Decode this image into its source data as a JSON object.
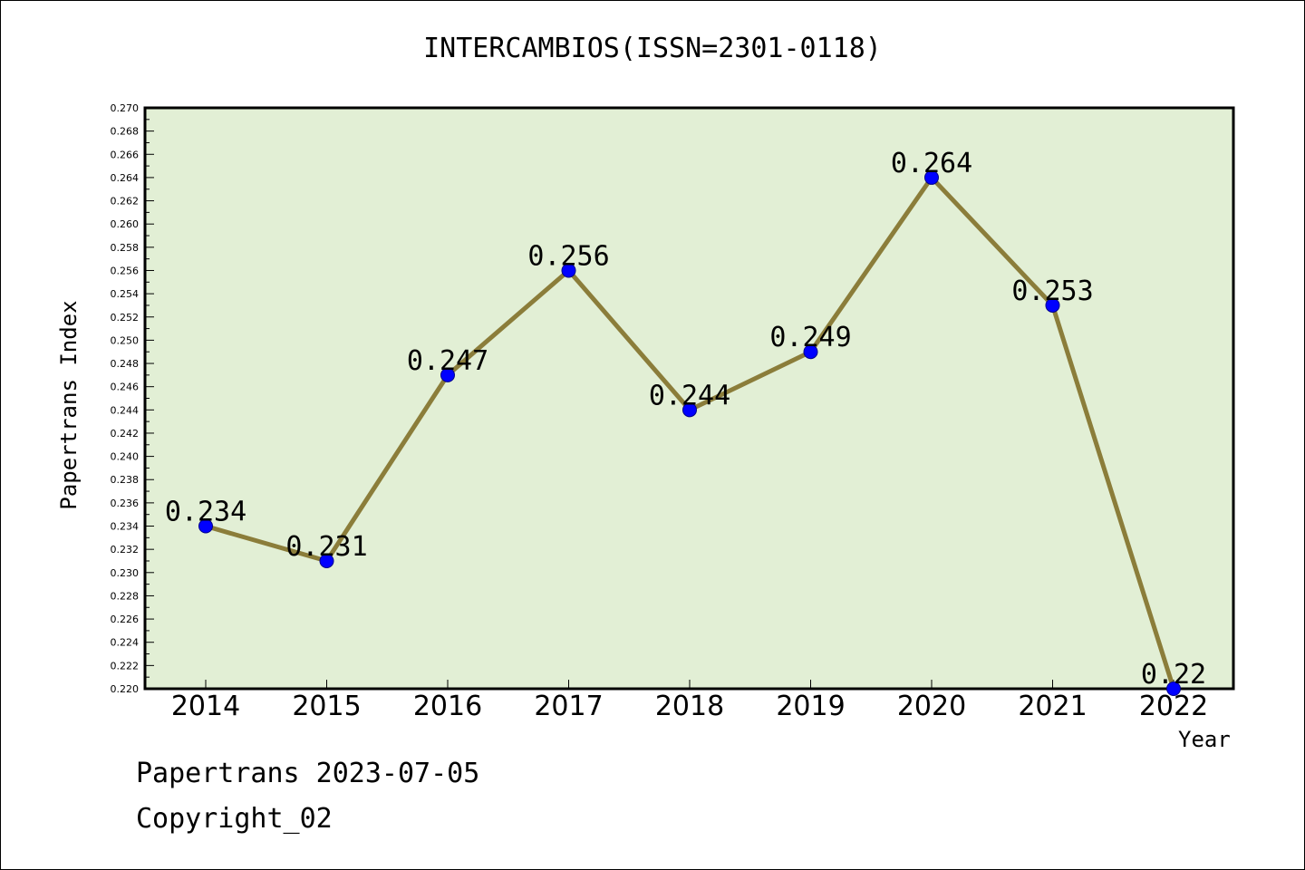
{
  "colors": {
    "plot_background": "#e2efd5",
    "line": "#8b7d3a",
    "marker": "#0000ff",
    "marker_edge": "#00008b",
    "axis": "#000000"
  },
  "footer": {
    "date_text": "Papertrans 2023-07-05",
    "copyright_text": "Copyright_02"
  },
  "chart_data": {
    "type": "line",
    "title": "INTERCAMBIOS(ISSN=2301-0118)",
    "xlabel": "Year",
    "ylabel": "Papertrans Index",
    "categories": [
      "2014",
      "2015",
      "2016",
      "2017",
      "2018",
      "2019",
      "2020",
      "2021",
      "2022"
    ],
    "series": [
      {
        "values": [
          0.234,
          0.231,
          0.247,
          0.256,
          0.244,
          0.249,
          0.264,
          0.253,
          0.22
        ],
        "data_labels": [
          "0.234",
          "0.231",
          "0.247",
          "0.256",
          "0.244",
          "0.249",
          "0.264",
          "0.253",
          "0.22"
        ]
      }
    ],
    "ylim": [
      0.22,
      0.27
    ],
    "y_ticks": [
      "0.220",
      "0.222",
      "0.224",
      "0.226",
      "0.228",
      "0.230",
      "0.232",
      "0.234",
      "0.236",
      "0.238",
      "0.240",
      "0.242",
      "0.244",
      "0.246",
      "0.248",
      "0.250",
      "0.252",
      "0.254",
      "0.256",
      "0.258",
      "0.260",
      "0.262",
      "0.264",
      "0.266",
      "0.268",
      "0.270"
    ],
    "grid": false,
    "legend": "none"
  }
}
